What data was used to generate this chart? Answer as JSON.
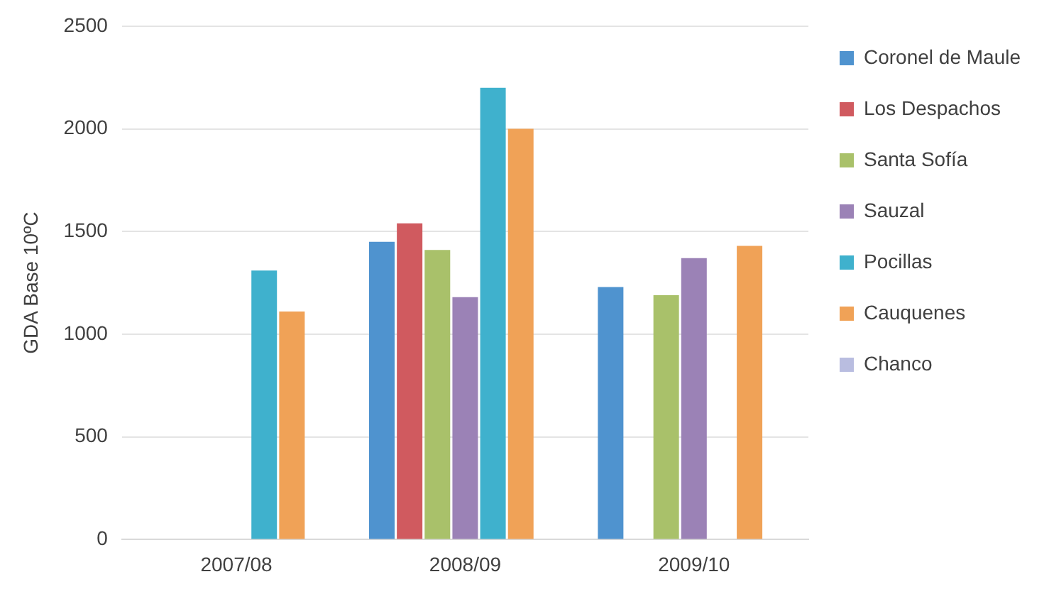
{
  "chart_data": {
    "type": "bar",
    "ylabel": "GDA Base 10ºC",
    "categories": [
      "2007/08",
      "2008/09",
      "2009/10"
    ],
    "series": [
      {
        "name": "Coronel de Maule",
        "color": "#4f93cf",
        "values": [
          null,
          1450,
          1230
        ]
      },
      {
        "name": "Los Despachos",
        "color": "#d05a5f",
        "values": [
          null,
          1540,
          null
        ]
      },
      {
        "name": "Santa Sofía",
        "color": "#a9c16a",
        "values": [
          null,
          1410,
          1190
        ]
      },
      {
        "name": "Sauzal",
        "color": "#9b82b6",
        "values": [
          null,
          1180,
          1370
        ]
      },
      {
        "name": "Pocillas",
        "color": "#3fb1cd",
        "values": [
          1310,
          2200,
          null
        ]
      },
      {
        "name": "Cauquenes",
        "color": "#f0a257",
        "values": [
          1110,
          2000,
          1430
        ]
      },
      {
        "name": "Chanco",
        "color": "#b9bde0",
        "values": [
          null,
          null,
          null
        ]
      }
    ],
    "ylim": [
      0,
      2500
    ],
    "yticks": [
      0,
      500,
      1000,
      1500,
      2000,
      2500
    ],
    "grid": "y",
    "legend": "right"
  }
}
